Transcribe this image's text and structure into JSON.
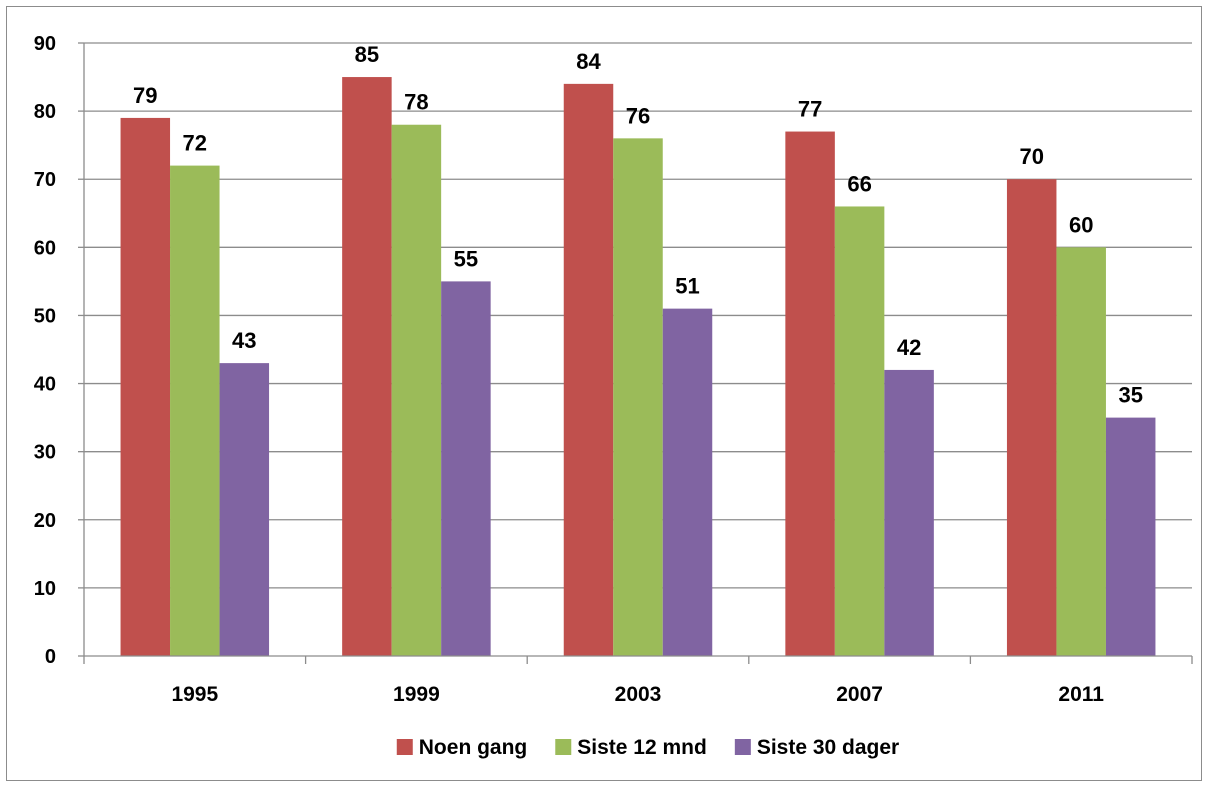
{
  "chart_data": {
    "type": "bar",
    "categories": [
      "1995",
      "1999",
      "2003",
      "2007",
      "2011"
    ],
    "series": [
      {
        "name": "Noen gang",
        "color": "#C0504D",
        "values": [
          79,
          85,
          84,
          77,
          70
        ]
      },
      {
        "name": "Siste 12 mnd",
        "color": "#9BBB59",
        "values": [
          72,
          78,
          76,
          66,
          60
        ]
      },
      {
        "name": "Siste 30 dager",
        "color": "#8064A2",
        "values": [
          43,
          55,
          51,
          42,
          35
        ]
      }
    ],
    "title": "",
    "xlabel": "",
    "ylabel": "",
    "ylim": [
      0,
      90
    ],
    "yticks": [
      "0",
      "10",
      "20",
      "30",
      "40",
      "50",
      "60",
      "70",
      "80",
      "90"
    ],
    "grid": true,
    "data_labels": true,
    "legend_position": "bottom"
  }
}
